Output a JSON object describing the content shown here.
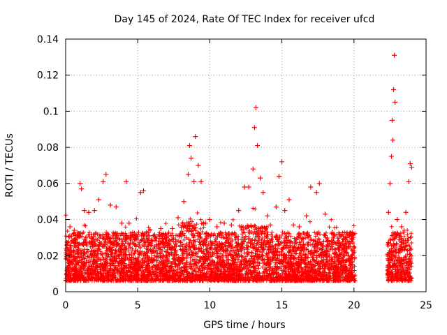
{
  "chart_data": {
    "type": "scatter",
    "title": "Day 145 of 2024, Rate Of TEC Index for receiver ufcd",
    "xlabel": "GPS time / hours",
    "ylabel": "ROTI / TECUs",
    "xlim": [
      0,
      25
    ],
    "ylim": [
      0,
      0.14
    ],
    "xticks": [
      0,
      5,
      10,
      15,
      20,
      25
    ],
    "xtick_labels": [
      "0",
      "5",
      "10",
      "15",
      "20",
      "25"
    ],
    "yticks": [
      0,
      0.02,
      0.04,
      0.06,
      0.08,
      0.1,
      0.12,
      0.14
    ],
    "ytick_labels": [
      "0",
      "0.02",
      "0.04",
      "0.06",
      "0.08",
      "0.1",
      "0.12",
      "0.14"
    ],
    "grid": true,
    "marker": "+",
    "color": "#ff0000",
    "data_gap_hours": [
      20.1,
      22.3
    ],
    "series": [
      {
        "name": "ROTI",
        "points": [
          [
            0.3,
            0.036
          ],
          [
            0.6,
            0.034
          ],
          [
            1.0,
            0.06
          ],
          [
            1.1,
            0.057
          ],
          [
            1.3,
            0.045
          ],
          [
            1.6,
            0.044
          ],
          [
            2.0,
            0.045
          ],
          [
            2.3,
            0.051
          ],
          [
            2.6,
            0.061
          ],
          [
            2.8,
            0.065
          ],
          [
            3.1,
            0.048
          ],
          [
            3.5,
            0.047
          ],
          [
            3.9,
            0.038
          ],
          [
            4.2,
            0.061
          ],
          [
            4.4,
            0.038
          ],
          [
            4.8,
            0.03
          ],
          [
            5.2,
            0.055
          ],
          [
            5.4,
            0.056
          ],
          [
            5.8,
            0.031
          ],
          [
            6.3,
            0.026
          ],
          [
            6.6,
            0.035
          ],
          [
            7.0,
            0.03
          ],
          [
            7.4,
            0.035
          ],
          [
            7.8,
            0.041
          ],
          [
            8.2,
            0.05
          ],
          [
            8.5,
            0.065
          ],
          [
            8.6,
            0.081
          ],
          [
            8.7,
            0.074
          ],
          [
            8.9,
            0.061
          ],
          [
            9.0,
            0.086
          ],
          [
            9.2,
            0.07
          ],
          [
            9.4,
            0.061
          ],
          [
            9.7,
            0.038
          ],
          [
            10.0,
            0.04
          ],
          [
            10.5,
            0.036
          ],
          [
            11.0,
            0.038
          ],
          [
            11.5,
            0.037
          ],
          [
            12.0,
            0.045
          ],
          [
            12.4,
            0.058
          ],
          [
            12.7,
            0.058
          ],
          [
            13.0,
            0.068
          ],
          [
            13.1,
            0.091
          ],
          [
            13.2,
            0.102
          ],
          [
            13.3,
            0.081
          ],
          [
            13.5,
            0.063
          ],
          [
            13.7,
            0.055
          ],
          [
            14.0,
            0.042
          ],
          [
            14.2,
            0.037
          ],
          [
            14.6,
            0.047
          ],
          [
            14.8,
            0.064
          ],
          [
            15.0,
            0.072
          ],
          [
            15.2,
            0.045
          ],
          [
            15.5,
            0.051
          ],
          [
            15.8,
            0.037
          ],
          [
            16.2,
            0.036
          ],
          [
            16.7,
            0.042
          ],
          [
            17.0,
            0.058
          ],
          [
            17.4,
            0.055
          ],
          [
            17.6,
            0.06
          ],
          [
            18.0,
            0.043
          ],
          [
            18.5,
            0.033
          ],
          [
            19.0,
            0.032
          ],
          [
            19.5,
            0.03
          ],
          [
            19.9,
            0.029
          ],
          [
            20.0,
            0.025
          ],
          [
            22.4,
            0.044
          ],
          [
            22.5,
            0.06
          ],
          [
            22.6,
            0.075
          ],
          [
            22.65,
            0.095
          ],
          [
            22.7,
            0.084
          ],
          [
            22.75,
            0.112
          ],
          [
            22.8,
            0.131
          ],
          [
            22.85,
            0.105
          ],
          [
            23.0,
            0.04
          ],
          [
            23.3,
            0.036
          ],
          [
            23.6,
            0.044
          ],
          [
            23.8,
            0.061
          ],
          [
            23.9,
            0.071
          ],
          [
            24.0,
            0.069
          ]
        ]
      }
    ]
  }
}
